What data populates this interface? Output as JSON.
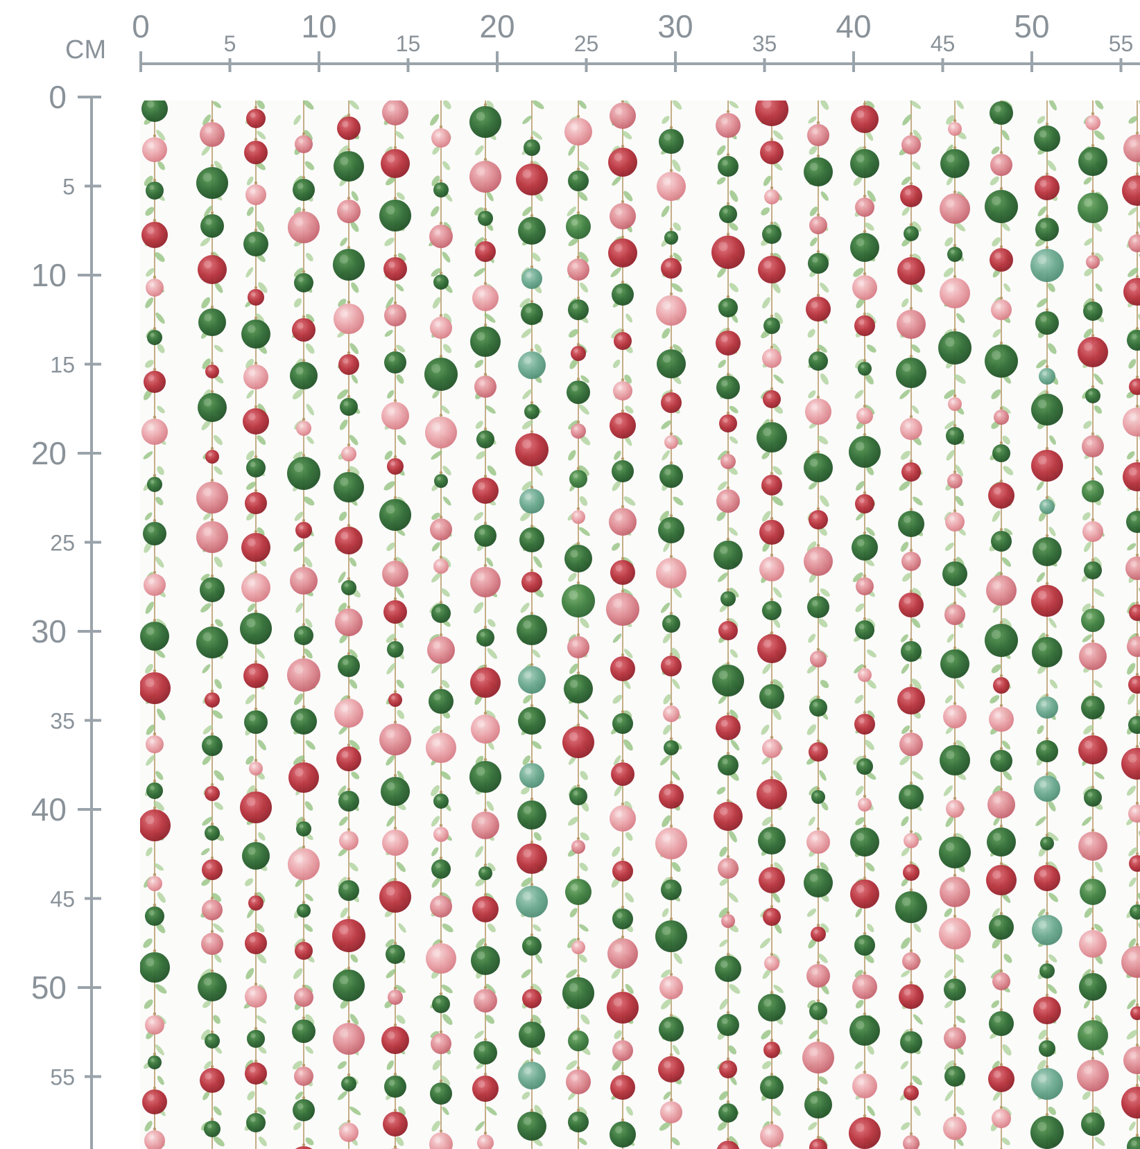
{
  "ruler": {
    "unit_label": "CM",
    "top_major": [
      "0",
      "10",
      "20",
      "30",
      "40",
      "50"
    ],
    "top_minor": [
      "5",
      "15",
      "25",
      "35",
      "45",
      "55"
    ],
    "left_major": [
      "0",
      "10",
      "20",
      "30",
      "40",
      "50"
    ],
    "left_minor": [
      "5",
      "15",
      "25",
      "35",
      "45",
      "55"
    ]
  },
  "pattern": {
    "name": "watercolor bauble garlands",
    "colors": {
      "dark_green": "#2f6b34",
      "green": "#3f8040",
      "teal": "#6aa88f",
      "red": "#b8323c",
      "pink": "#de8a92",
      "light_pink": "#eaa3a9",
      "leaf": "#8fbf7a",
      "string": "#b89a6a"
    }
  }
}
